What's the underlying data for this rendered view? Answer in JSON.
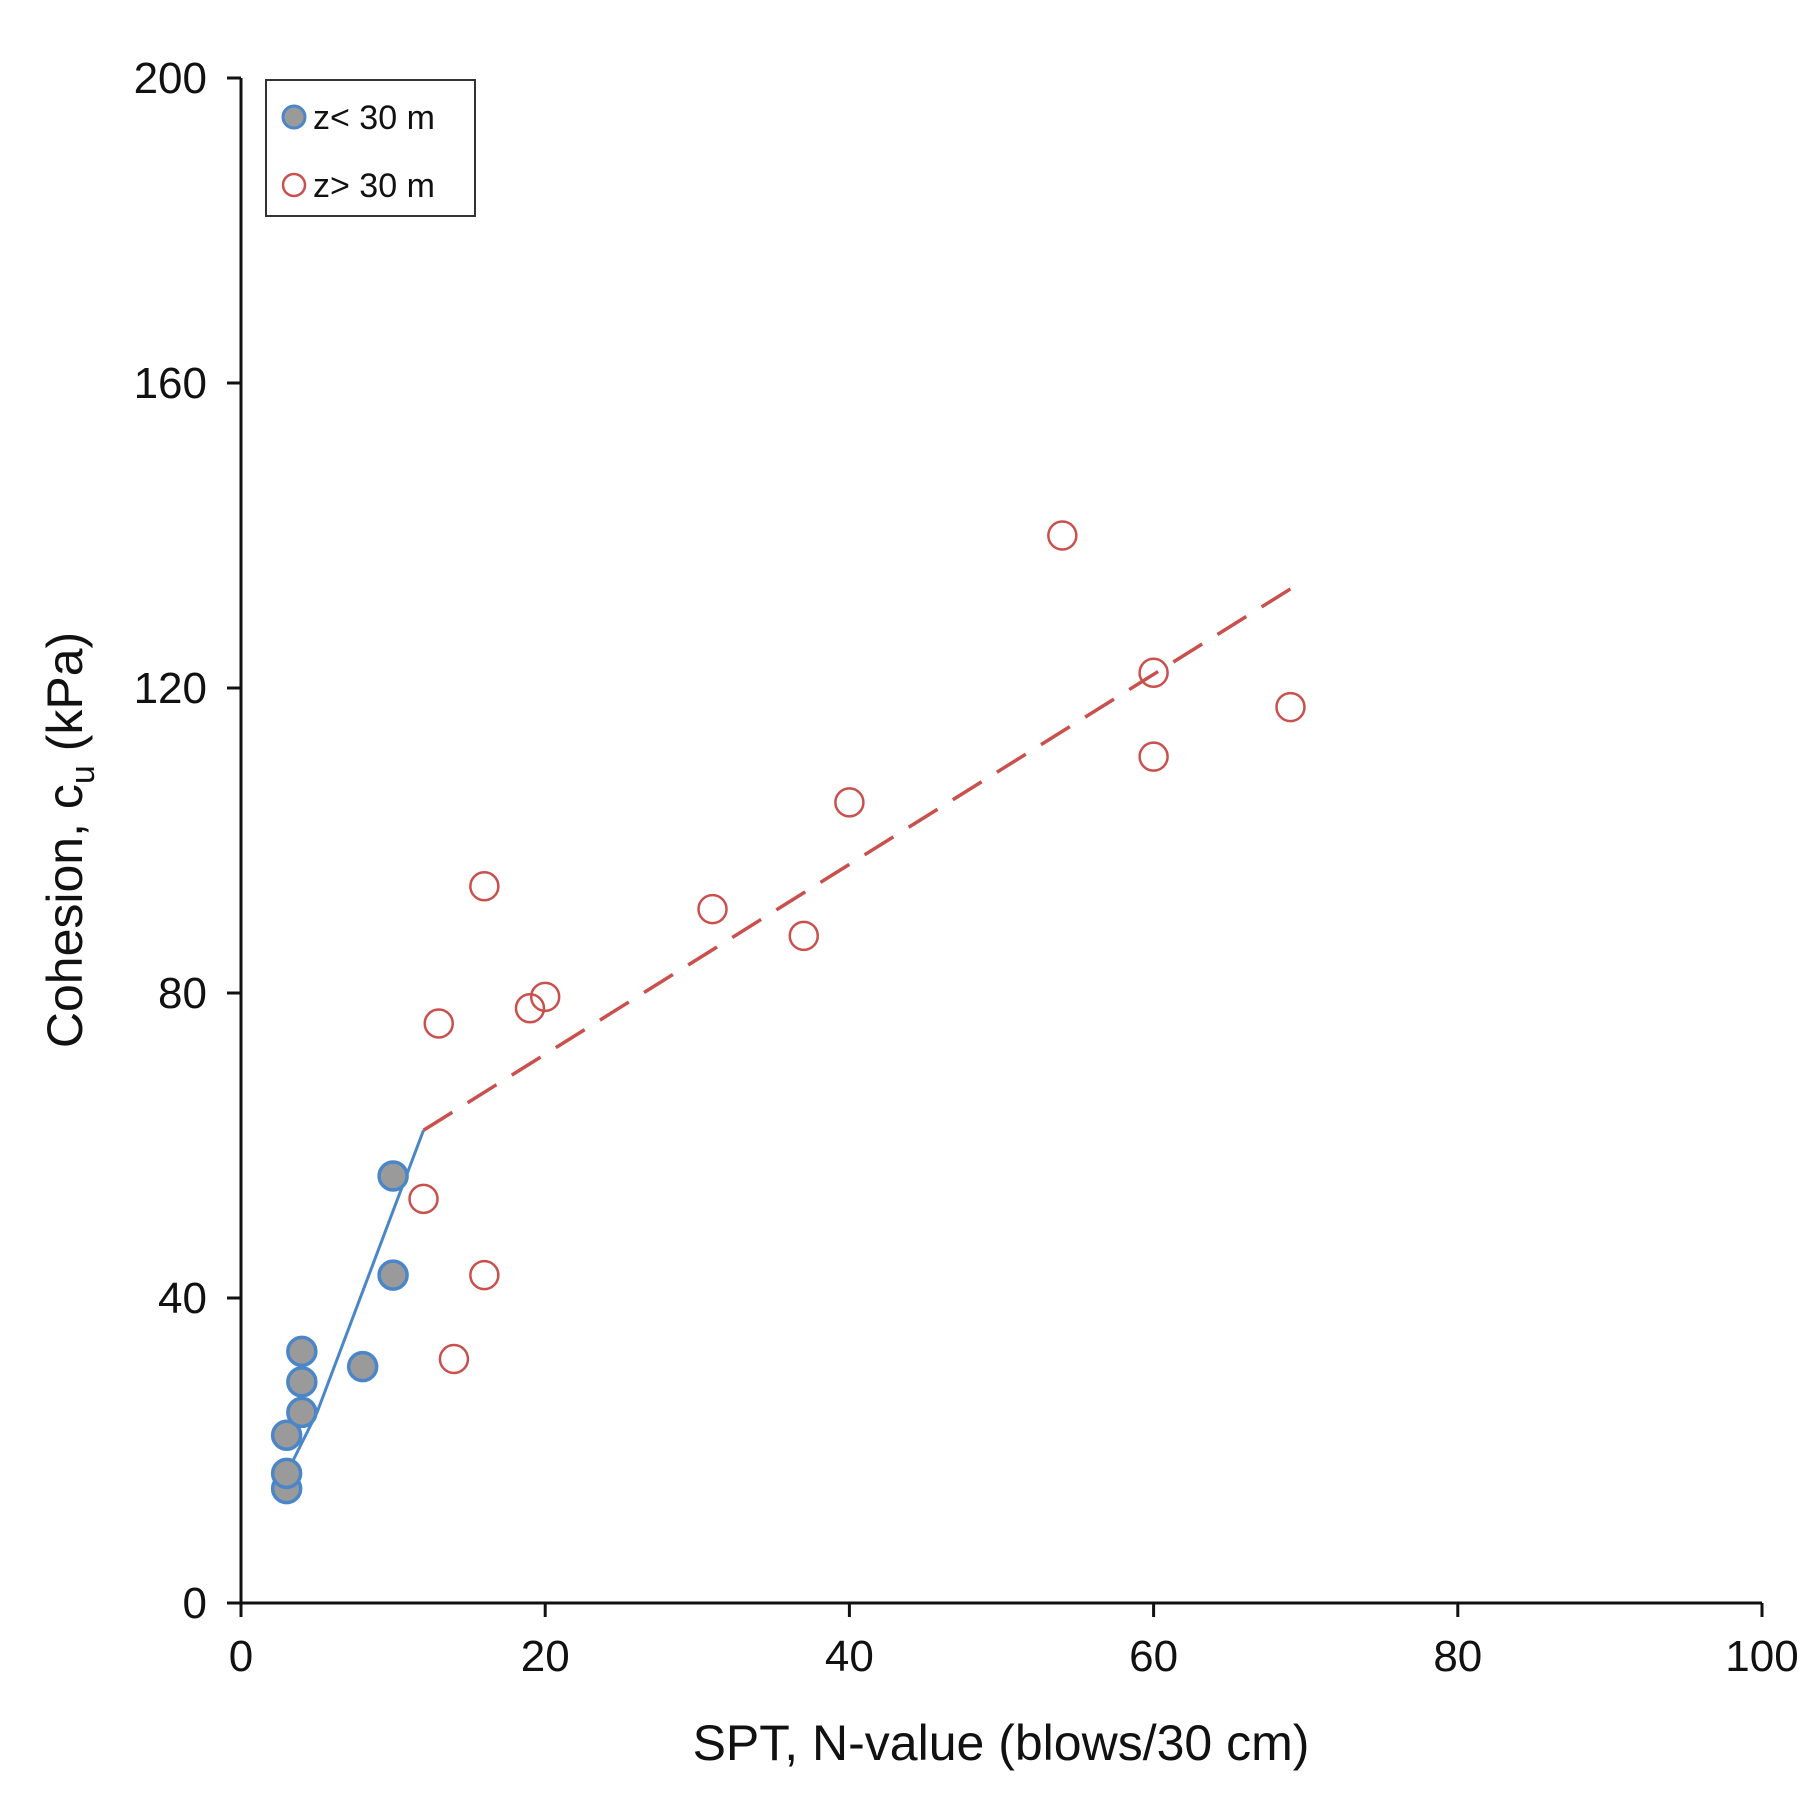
{
  "chart_data": {
    "type": "scatter",
    "xlabel": "SPT, N-value  (blows/30  cm)",
    "ylabel": {
      "prefix": "Cohesion,  c",
      "subscript": "u",
      "suffix": " (kPa)"
    },
    "xlim": [
      0,
      100
    ],
    "ylim": [
      0,
      200
    ],
    "xticks": [
      0,
      20,
      40,
      60,
      80,
      100
    ],
    "yticks": [
      0,
      40,
      80,
      120,
      160,
      200
    ],
    "grid": false,
    "legend_position": "top-left",
    "series": [
      {
        "name": "z< 30 m",
        "marker": "filled-circle",
        "fill": "#9a9a9a",
        "stroke": "#4a86c8",
        "points": [
          [
            3,
            15
          ],
          [
            3,
            17
          ],
          [
            3,
            22
          ],
          [
            4,
            25
          ],
          [
            4,
            29
          ],
          [
            4,
            33
          ],
          [
            8,
            31
          ],
          [
            10,
            43
          ],
          [
            10,
            56
          ]
        ],
        "trendline": {
          "style": "solid",
          "color": "#4a86c8",
          "points": [
            [
              3,
              17
            ],
            [
              5,
              25
            ],
            [
              12,
              62
            ]
          ]
        }
      },
      {
        "name": "z> 30 m",
        "marker": "open-circle",
        "fill": "none",
        "stroke": "#c9504c",
        "points": [
          [
            12,
            53
          ],
          [
            13,
            76
          ],
          [
            14,
            32
          ],
          [
            16,
            94
          ],
          [
            16,
            43
          ],
          [
            19,
            78
          ],
          [
            20,
            79.5
          ],
          [
            31,
            91
          ],
          [
            37,
            87.5
          ],
          [
            40,
            105
          ],
          [
            54,
            140
          ],
          [
            60,
            122
          ],
          [
            60,
            111
          ],
          [
            69,
            117.5
          ]
        ],
        "trendline": {
          "style": "dashed",
          "color": "#c9504c",
          "points": [
            [
              12,
              62
            ],
            [
              69,
              133
            ]
          ]
        }
      }
    ]
  }
}
